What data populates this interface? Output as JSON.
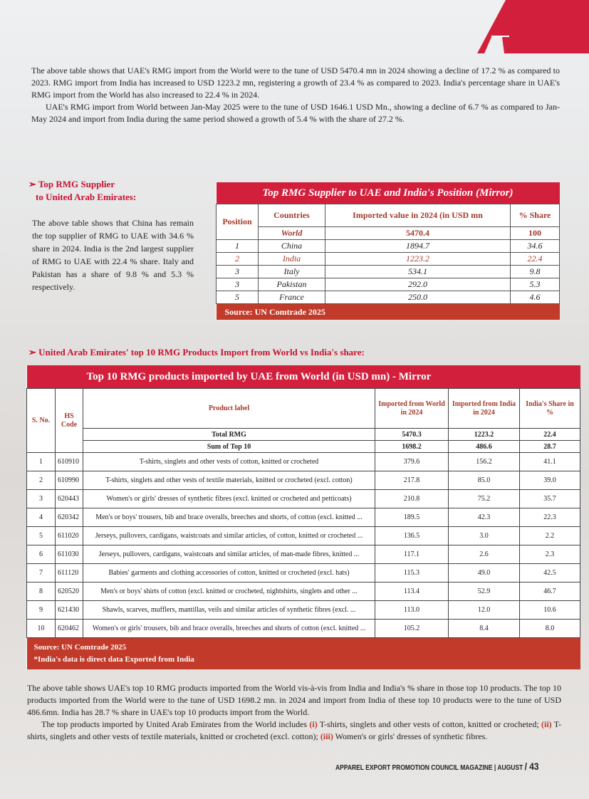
{
  "logo": {
    "letter": "A",
    "color": "#d21f3c"
  },
  "intro": {
    "p1": "The above table shows that UAE's RMG import from the World were to the tune of USD 5470.4 mn in 2024 showing a decline of 17.2 % as compared to 2023. RMG import from India has increased to USD 1223.2 mn, registering a growth of 23.4 % as compared to 2023. India's percentage share in UAE's RMG import from the World has also increased to 22.4 % in 2024.",
    "p2": "UAE's RMG import from World between Jan-May 2025 were to the tune of USD 1646.1 USD Mn., showing a decline of 6.7 % as compared to Jan-May 2024 and import from India during the same period showed a growth of 5.4 % with the share of 27.2 %."
  },
  "supplier_section": {
    "heading_line1": "Top RMG Supplier",
    "heading_line2": "to United Arab Emirates:",
    "body": "The above table shows that China has remain the top supplier of RMG to UAE with 34.6 % share in 2024. India is the 2nd largest supplier of RMG to UAE with 22.4 % share. Italy and Pakistan has a share of 9.8 % and 5.3 % respectively."
  },
  "supplier_table": {
    "title": "Top RMG Supplier to UAE and India's Position (Mirror)",
    "headers": [
      "Position",
      "Countries",
      "Imported value in 2024 (in USD mn",
      "% Share"
    ],
    "world": {
      "country": "World",
      "value": "5470.4",
      "share": "100"
    },
    "rows": [
      {
        "position": "1",
        "country": "China",
        "value": "1894.7",
        "share": "34.6"
      },
      {
        "position": "2",
        "country": "India",
        "value": "1223.2",
        "share": "22.4"
      },
      {
        "position": "3",
        "country": "Italy",
        "value": "534.1",
        "share": "9.8"
      },
      {
        "position": "3",
        "country": "Pakistan",
        "value": "292.0",
        "share": "5.3"
      },
      {
        "position": "5",
        "country": "France",
        "value": "250.0",
        "share": "4.6"
      }
    ],
    "source": "Source: UN Comtrade 2025"
  },
  "products_section": {
    "heading": "United Arab Emirates' top 10 RMG Products Import from World vs India's share:"
  },
  "products_table": {
    "title": "Top 10 RMG products imported by UAE from World (in USD mn) - Mirror",
    "headers": [
      "S. No.",
      "HS Code",
      "Product label",
      "Imported from World in 2024",
      "Imported from India in 2024",
      "India's Share in %"
    ],
    "total": {
      "label": "Total RMG",
      "world": "5470.3",
      "india": "1223.2",
      "share": "22.4"
    },
    "sum": {
      "label": "Sum of Top 10",
      "world": "1698.2",
      "india": "486.6",
      "share": "28.7"
    },
    "rows": [
      {
        "sno": "1",
        "hs": "610910",
        "label": "T-shirts, singlets and other vests of cotton, knitted or crocheted",
        "world": "379.6",
        "india": "156.2",
        "share": "41.1"
      },
      {
        "sno": "2",
        "hs": "610990",
        "label": "T-shirts, singlets and other vests of textile materials, knitted or crocheted (excl. cotton)",
        "world": "217.8",
        "india": "85.0",
        "share": "39.0"
      },
      {
        "sno": "3",
        "hs": "620443",
        "label": "Women's or girls' dresses of synthetic fibres (excl. knitted or crocheted and petticoats)",
        "world": "210.8",
        "india": "75.2",
        "share": "35.7"
      },
      {
        "sno": "4",
        "hs": "620342",
        "label": "Men's or boys' trousers, bib and brace overalls, breeches and shorts, of cotton (excl. knitted ...",
        "world": "189.5",
        "india": "42.3",
        "share": "22.3"
      },
      {
        "sno": "5",
        "hs": "611020",
        "label": "Jerseys, pullovers, cardigans, waistcoats and similar articles, of cotton, knitted or crocheted ...",
        "world": "136.5",
        "india": "3.0",
        "share": "2.2"
      },
      {
        "sno": "6",
        "hs": "611030",
        "label": "Jerseys, pullovers, cardigans, waistcoats and similar articles, of man-made fibres, knitted ...",
        "world": "117.1",
        "india": "2.6",
        "share": "2.3"
      },
      {
        "sno": "7",
        "hs": "611120",
        "label": "Babies' garments and clothing accessories of cotton, knitted or crocheted (excl. hats)",
        "world": "115.3",
        "india": "49.0",
        "share": "42.5"
      },
      {
        "sno": "8",
        "hs": "620520",
        "label": "Men's or boys' shirts of cotton (excl. knitted or crocheted, nightshirts, singlets and other ...",
        "world": "113.4",
        "india": "52.9",
        "share": "46.7"
      },
      {
        "sno": "9",
        "hs": "621430",
        "label": "Shawls, scarves, mufflers, mantillas, veils and similar articles of synthetic fibres (excl. ...",
        "world": "113.0",
        "india": "12.0",
        "share": "10.6"
      },
      {
        "sno": "10",
        "hs": "620462",
        "label": "Women's or girls' trousers, bib and brace overalls, breeches and shorts of cotton (excl. knitted ...",
        "world": "105.2",
        "india": "8.4",
        "share": "8.0"
      }
    ],
    "source": "Source: UN Comtrade 2025",
    "note": "*India's data is direct data Exported from India"
  },
  "closing": {
    "p1": "The above table shows UAE's top 10 RMG products imported from the World vis-à-vis from India and India's % share in those top 10 products. The top 10 products imported from the World were to the tune of USD 1698.2 mn. in 2024 and import from India of these top 10 products were to the tune of USD 486.6mn. India has 28.7 % share in UAE's top 10 products import from the World.",
    "p2_a": "The top products imported by United Arab Emirates from the World includes ",
    "m1": "(i)",
    "p2_b": " T-shirts, singlets and other vests of cotton, knitted or crocheted; ",
    "m2": "(ii)",
    "p2_c": " T-shirts, singlets and other vests of textile materials, knitted or crocheted (excl. cotton); ",
    "m3": "(iii)",
    "p2_d": " Women's or girls' dresses of synthetic fibres."
  },
  "footer": {
    "magazine": "APPAREL EXPORT PROMOTION COUNCIL MAGAZINE |",
    "month": "AUGUST",
    "page": "/ 43"
  }
}
